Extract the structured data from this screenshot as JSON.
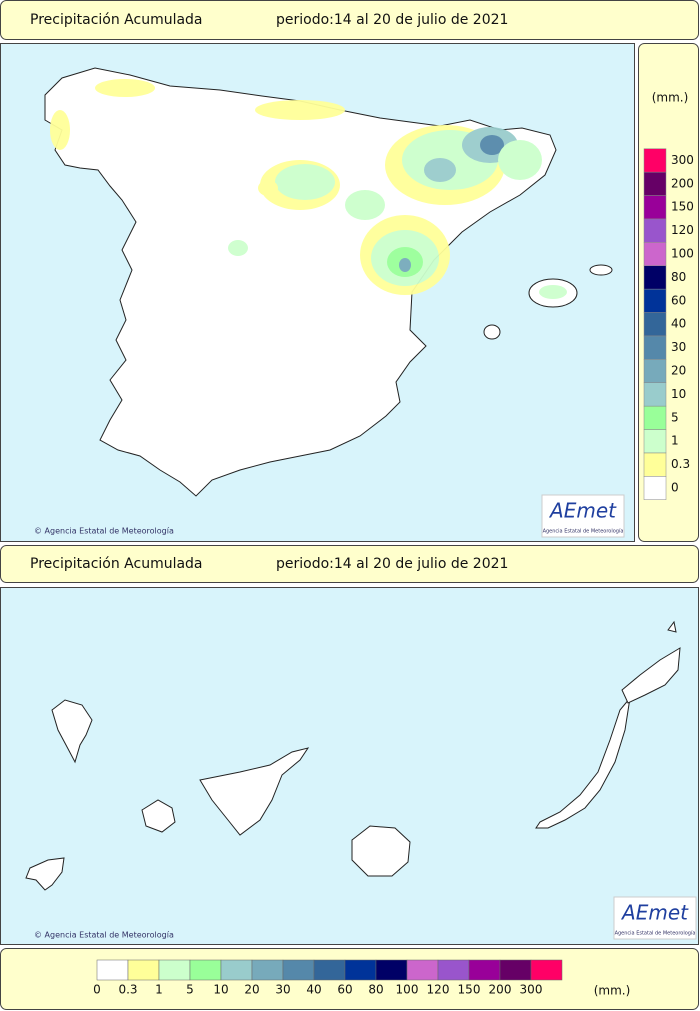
{
  "header_top": {
    "title": "Precipitación Acumulada",
    "period": "periodo:14 al 20 de julio de 2021"
  },
  "peninsula_map": {
    "credit": "© Agencia Estatal de Meteorología",
    "logo": {
      "name": "AEmet",
      "subtitle": "Agencia Estatal de Meteorología"
    }
  },
  "header_bottom": {
    "title": "Precipitación Acumulada",
    "period": "periodo:14 al 20 de julio de 2021"
  },
  "canarias_map": {
    "credit": "© Agencia Estatal de Meteorología",
    "logo": {
      "name": "AEmet",
      "subtitle": "Agencia Estatal de Meteorología"
    }
  },
  "legend": {
    "unit": "(mm.)",
    "items": [
      {
        "label": "0",
        "color": "#ffffff"
      },
      {
        "label": "0.3",
        "color": "#ffff99"
      },
      {
        "label": "1",
        "color": "#ccffcc"
      },
      {
        "label": "5",
        "color": "#99ff99"
      },
      {
        "label": "10",
        "color": "#99cccc"
      },
      {
        "label": "20",
        "color": "#77aabb"
      },
      {
        "label": "30",
        "color": "#5588aa"
      },
      {
        "label": "40",
        "color": "#336699"
      },
      {
        "label": "60",
        "color": "#003399"
      },
      {
        "label": "80",
        "color": "#000066"
      },
      {
        "label": "100",
        "color": "#cc66cc"
      },
      {
        "label": "120",
        "color": "#9955cc"
      },
      {
        "label": "150",
        "color": "#990099"
      },
      {
        "label": "200",
        "color": "#660066"
      },
      {
        "label": "300",
        "color": "#ff0066"
      }
    ]
  }
}
